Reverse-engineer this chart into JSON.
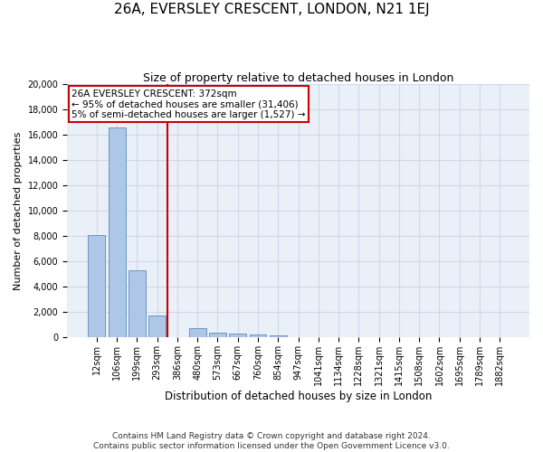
{
  "title": "26A, EVERSLEY CRESCENT, LONDON, N21 1EJ",
  "subtitle": "Size of property relative to detached houses in London",
  "xlabel": "Distribution of detached houses by size in London",
  "ylabel": "Number of detached properties",
  "categories": [
    "12sqm",
    "106sqm",
    "199sqm",
    "293sqm",
    "386sqm",
    "480sqm",
    "573sqm",
    "667sqm",
    "760sqm",
    "854sqm",
    "947sqm",
    "1041sqm",
    "1134sqm",
    "1228sqm",
    "1321sqm",
    "1415sqm",
    "1508sqm",
    "1602sqm",
    "1695sqm",
    "1789sqm",
    "1882sqm"
  ],
  "bar_values": [
    8100,
    16600,
    5300,
    1750,
    0,
    700,
    380,
    300,
    250,
    200,
    0,
    0,
    0,
    0,
    0,
    0,
    0,
    0,
    0,
    0,
    0
  ],
  "bar_color": "#aec6e8",
  "bar_edge_color": "#5b8db8",
  "vline_color": "#cc0000",
  "annotation_text": "26A EVERSLEY CRESCENT: 372sqm\n← 95% of detached houses are smaller (31,406)\n5% of semi-detached houses are larger (1,527) →",
  "annotation_box_color": "#ffffff",
  "annotation_box_edge_color": "#cc0000",
  "ylim": [
    0,
    20000
  ],
  "yticks": [
    0,
    2000,
    4000,
    6000,
    8000,
    10000,
    12000,
    14000,
    16000,
    18000,
    20000
  ],
  "grid_color": "#d0d8e8",
  "background_color": "#eaf0f8",
  "footer": "Contains HM Land Registry data © Crown copyright and database right 2024.\nContains public sector information licensed under the Open Government Licence v3.0.",
  "title_fontsize": 11,
  "subtitle_fontsize": 9,
  "xlabel_fontsize": 8.5,
  "ylabel_fontsize": 8,
  "tick_fontsize": 7,
  "footer_fontsize": 6.5
}
